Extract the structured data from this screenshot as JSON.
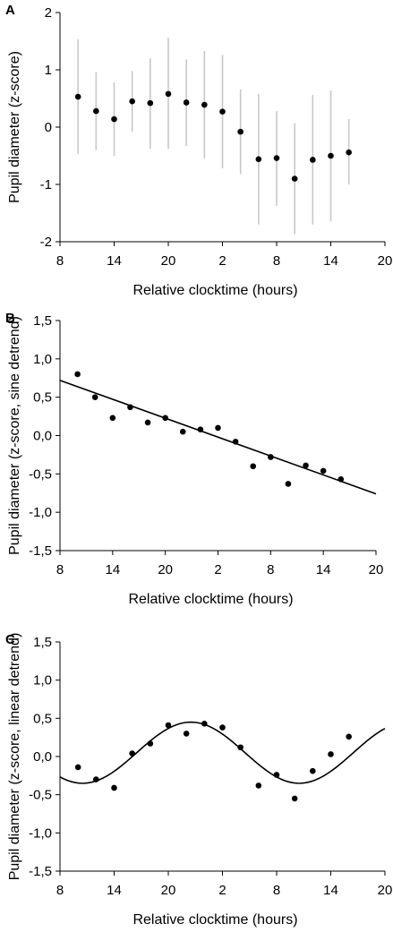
{
  "chart_data": [
    {
      "type": "scatter",
      "panel_label": "A",
      "xlabel": "Relative clocktime (hours)",
      "ylabel": "Pupil diameter (z-score)",
      "xticks": [
        "8",
        "14",
        "20",
        "2",
        "8",
        "14",
        "20"
      ],
      "yticks": [
        "-2",
        "-1",
        "0",
        "1",
        "2"
      ],
      "xlim": [
        8,
        44
      ],
      "ylim": [
        -2,
        2
      ],
      "grid": false,
      "colors": {
        "points": "#000000",
        "error_bars": "#c8c8c8"
      },
      "points": [
        {
          "x": 10.0,
          "y": 0.53,
          "lo": -0.47,
          "hi": 1.53
        },
        {
          "x": 12.0,
          "y": 0.28,
          "lo": -0.4,
          "hi": 0.96
        },
        {
          "x": 14.0,
          "y": 0.14,
          "lo": -0.5,
          "hi": 0.78
        },
        {
          "x": 16.0,
          "y": 0.45,
          "lo": -0.08,
          "hi": 0.98
        },
        {
          "x": 18.0,
          "y": 0.42,
          "lo": -0.38,
          "hi": 1.2
        },
        {
          "x": 20.0,
          "y": 0.58,
          "lo": -0.38,
          "hi": 1.56
        },
        {
          "x": 22.0,
          "y": 0.43,
          "lo": -0.33,
          "hi": 1.18
        },
        {
          "x": 24.0,
          "y": 0.39,
          "lo": -0.55,
          "hi": 1.33
        },
        {
          "x": 26.0,
          "y": 0.27,
          "lo": -0.72,
          "hi": 1.26
        },
        {
          "x": 28.0,
          "y": -0.08,
          "lo": -0.82,
          "hi": 0.66
        },
        {
          "x": 30.0,
          "y": -0.56,
          "lo": -1.7,
          "hi": 0.58
        },
        {
          "x": 32.0,
          "y": -0.54,
          "lo": -1.37,
          "hi": 0.28
        },
        {
          "x": 34.0,
          "y": -0.9,
          "lo": -1.87,
          "hi": 0.07
        },
        {
          "x": 36.0,
          "y": -0.57,
          "lo": -1.7,
          "hi": 0.56
        },
        {
          "x": 38.0,
          "y": -0.5,
          "lo": -1.64,
          "hi": 0.64
        },
        {
          "x": 40.0,
          "y": -0.44,
          "lo": -1.0,
          "hi": 0.14
        }
      ]
    },
    {
      "type": "scatter",
      "panel_label": "B",
      "xlabel": "Relative clocktime (hours)",
      "ylabel": "Pupil diameter (z-score, sine detrend)",
      "xticks": [
        "8",
        "14",
        "20",
        "2",
        "8",
        "14",
        "20"
      ],
      "yticks": [
        "-1,5",
        "-1,0",
        "-0,5",
        "0,0",
        "0,5",
        "1,0",
        "1,5"
      ],
      "xlim": [
        8,
        44
      ],
      "ylim": [
        -1.5,
        1.5
      ],
      "grid": false,
      "colors": {
        "points": "#000000",
        "fit": "#000000"
      },
      "points": [
        {
          "x": 10.0,
          "y": 0.8
        },
        {
          "x": 12.0,
          "y": 0.5
        },
        {
          "x": 14.0,
          "y": 0.23
        },
        {
          "x": 16.0,
          "y": 0.37
        },
        {
          "x": 18.0,
          "y": 0.17
        },
        {
          "x": 20.0,
          "y": 0.23
        },
        {
          "x": 22.0,
          "y": 0.05
        },
        {
          "x": 24.0,
          "y": 0.08
        },
        {
          "x": 26.0,
          "y": 0.1
        },
        {
          "x": 28.0,
          "y": -0.08
        },
        {
          "x": 30.0,
          "y": -0.4
        },
        {
          "x": 32.0,
          "y": -0.28
        },
        {
          "x": 34.0,
          "y": -0.63
        },
        {
          "x": 36.0,
          "y": -0.39
        },
        {
          "x": 38.0,
          "y": -0.46
        },
        {
          "x": 40.0,
          "y": -0.57
        }
      ],
      "fit": {
        "kind": "linear",
        "x": [
          8,
          44
        ],
        "y": [
          0.72,
          -0.76
        ]
      }
    },
    {
      "type": "scatter",
      "panel_label": "C",
      "xlabel": "Relative clocktime (hours)",
      "ylabel": "Pupil diameter (z-score, linear detrend)",
      "xticks": [
        "8",
        "14",
        "20",
        "2",
        "8",
        "14",
        "20"
      ],
      "yticks": [
        "-1,5",
        "-1,0",
        "-0,5",
        "0,0",
        "0,5",
        "1,0",
        "1,5"
      ],
      "xlim": [
        8,
        44
      ],
      "ylim": [
        -1.5,
        1.5
      ],
      "grid": false,
      "colors": {
        "points": "#000000",
        "fit": "#000000"
      },
      "points": [
        {
          "x": 10.0,
          "y": -0.14
        },
        {
          "x": 12.0,
          "y": -0.3
        },
        {
          "x": 14.0,
          "y": -0.41
        },
        {
          "x": 16.0,
          "y": 0.04
        },
        {
          "x": 18.0,
          "y": 0.17
        },
        {
          "x": 20.0,
          "y": 0.41
        },
        {
          "x": 22.0,
          "y": 0.3
        },
        {
          "x": 24.0,
          "y": 0.43
        },
        {
          "x": 26.0,
          "y": 0.38
        },
        {
          "x": 28.0,
          "y": 0.12
        },
        {
          "x": 30.0,
          "y": -0.38
        },
        {
          "x": 32.0,
          "y": -0.24
        },
        {
          "x": 34.0,
          "y": -0.55
        },
        {
          "x": 36.0,
          "y": -0.19
        },
        {
          "x": 38.0,
          "y": 0.03
        },
        {
          "x": 40.0,
          "y": 0.26
        }
      ],
      "fit": {
        "kind": "sine",
        "amplitude": 0.4,
        "offset": 0.05,
        "period": 24,
        "peak_x": 22.5
      }
    }
  ]
}
